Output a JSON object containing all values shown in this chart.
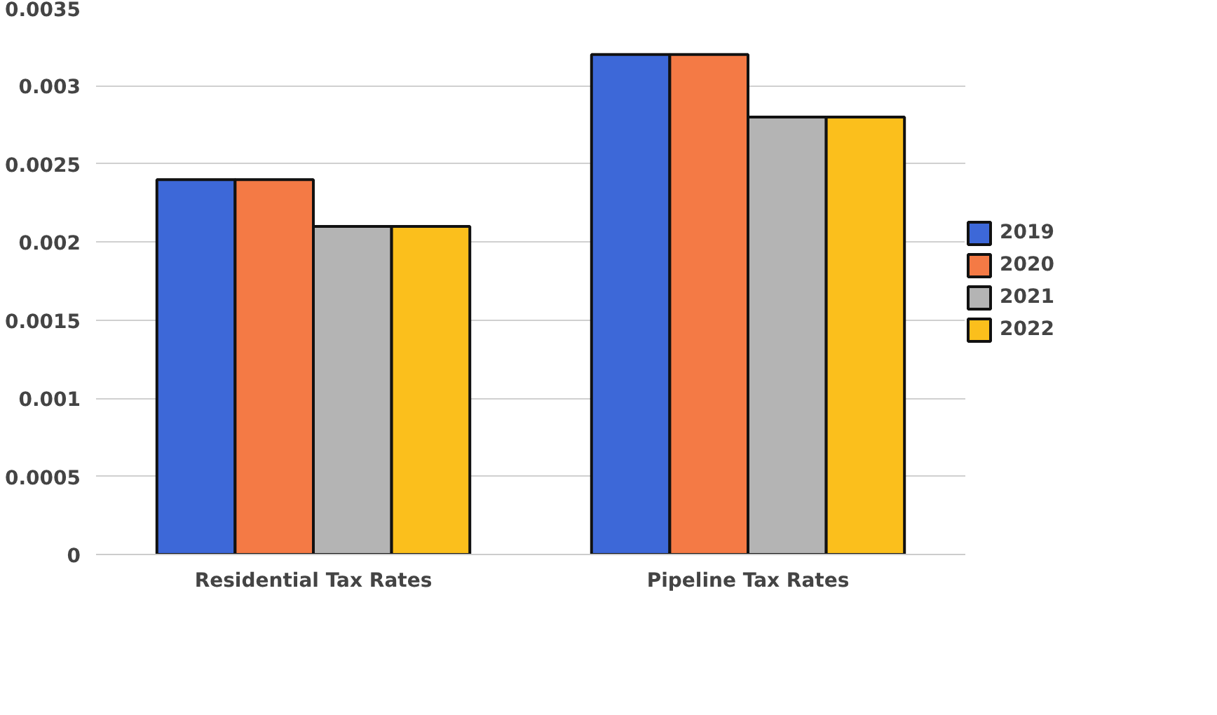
{
  "chart_data": {
    "type": "bar",
    "categories": [
      "Residential Tax Rates",
      "Pipeline Tax Rates"
    ],
    "series": [
      {
        "name": "2019",
        "color": "#3d68d8",
        "values": [
          0.0024,
          0.0032
        ]
      },
      {
        "name": "2020",
        "color": "#f47a45",
        "values": [
          0.0024,
          0.0032
        ]
      },
      {
        "name": "2021",
        "color": "#b4b4b4",
        "values": [
          0.0021,
          0.0028
        ]
      },
      {
        "name": "2022",
        "color": "#fbbf1c",
        "values": [
          0.0021,
          0.0028
        ]
      }
    ],
    "ylim": [
      0,
      0.0035
    ],
    "yticks": [
      0,
      0.0005,
      0.001,
      0.0015,
      0.002,
      0.0025,
      0.003,
      0.0035
    ],
    "grid": "y",
    "legend": "right"
  }
}
